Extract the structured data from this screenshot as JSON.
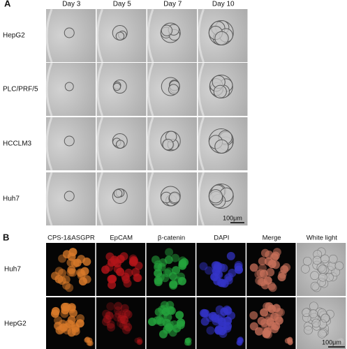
{
  "panel_a": {
    "label": "A",
    "columns": [
      "Day 3",
      "Day 5",
      "Day 7",
      "Day 10"
    ],
    "rows": [
      "HepG2",
      "PLC/PRF/5",
      "HCCLM3",
      "Huh7"
    ],
    "scale_bar": "100μm"
  },
  "panel_b": {
    "label": "B",
    "columns": [
      "CPS-1&ASGPR",
      "EpCAM",
      "β-catenin",
      "DAPI",
      "Merge",
      "White light"
    ],
    "rows": [
      "Huh7",
      "HepG2"
    ],
    "scale_bar": "100μm"
  }
}
